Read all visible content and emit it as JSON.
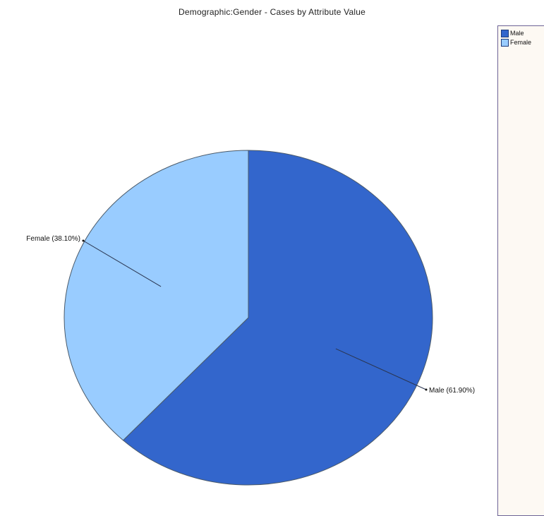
{
  "chart_data": {
    "type": "pie",
    "title": "Demographic:Gender - Cases by Attribute Value",
    "slices": [
      {
        "name": "Male",
        "label": "Male (61.90%)",
        "value": 61.9,
        "color": "#3366cc"
      },
      {
        "name": "Female",
        "label": "Female (38.10%)",
        "value": 38.1,
        "color": "#99ccff"
      }
    ],
    "start_angle_deg": 0,
    "direction": "clockwise",
    "legend": {
      "placement": "right",
      "entries": [
        "Male",
        "Female"
      ]
    }
  }
}
